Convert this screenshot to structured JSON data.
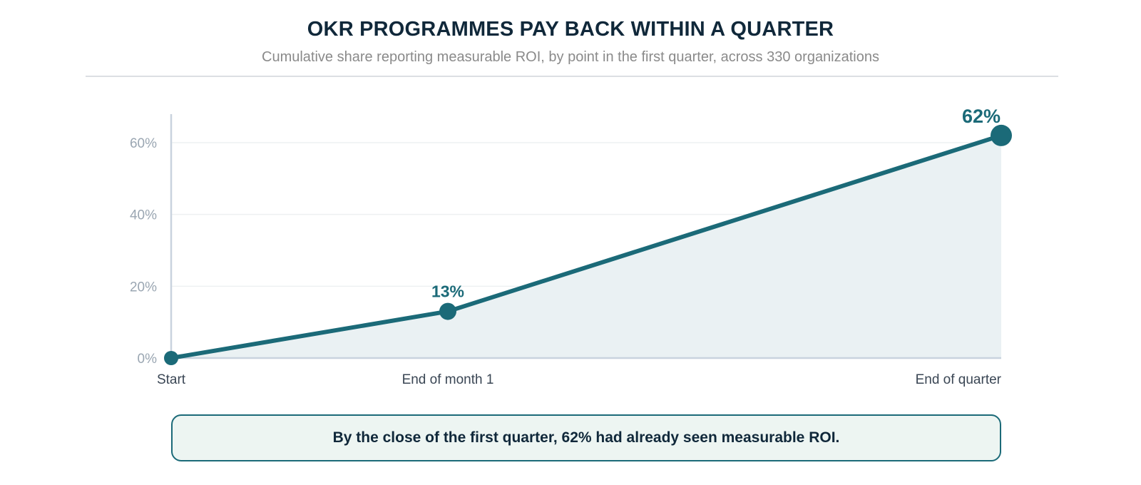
{
  "chart_data": {
    "type": "area",
    "title": "OKR PROGRAMMES PAY BACK WITHIN A QUARTER",
    "subtitle": "Cumulative share reporting measurable ROI, by point in the first quarter, across 330 organizations",
    "categories": [
      "Start",
      "End of month 1",
      "End of quarter"
    ],
    "x": [
      0,
      1,
      3
    ],
    "values": [
      0,
      13,
      62
    ],
    "data_labels": [
      "",
      "13%",
      "62%"
    ],
    "y_ticks": [
      "0%",
      "20%",
      "40%",
      "60%"
    ],
    "y_tick_values": [
      0,
      20,
      40,
      60
    ],
    "ylim": [
      0,
      60
    ],
    "xlabel": "",
    "ylabel": "",
    "grid": true,
    "legend": "none",
    "colors": {
      "line": "#1b6a78",
      "area": "#eaf1f3",
      "axis": "#c9d3de",
      "grid": "#eef0f2",
      "tick_text": "#9aa6b2",
      "category_text": "#3a4654"
    }
  },
  "callout": {
    "text": "By the close of the first quarter, 62% had already seen measurable ROI."
  }
}
